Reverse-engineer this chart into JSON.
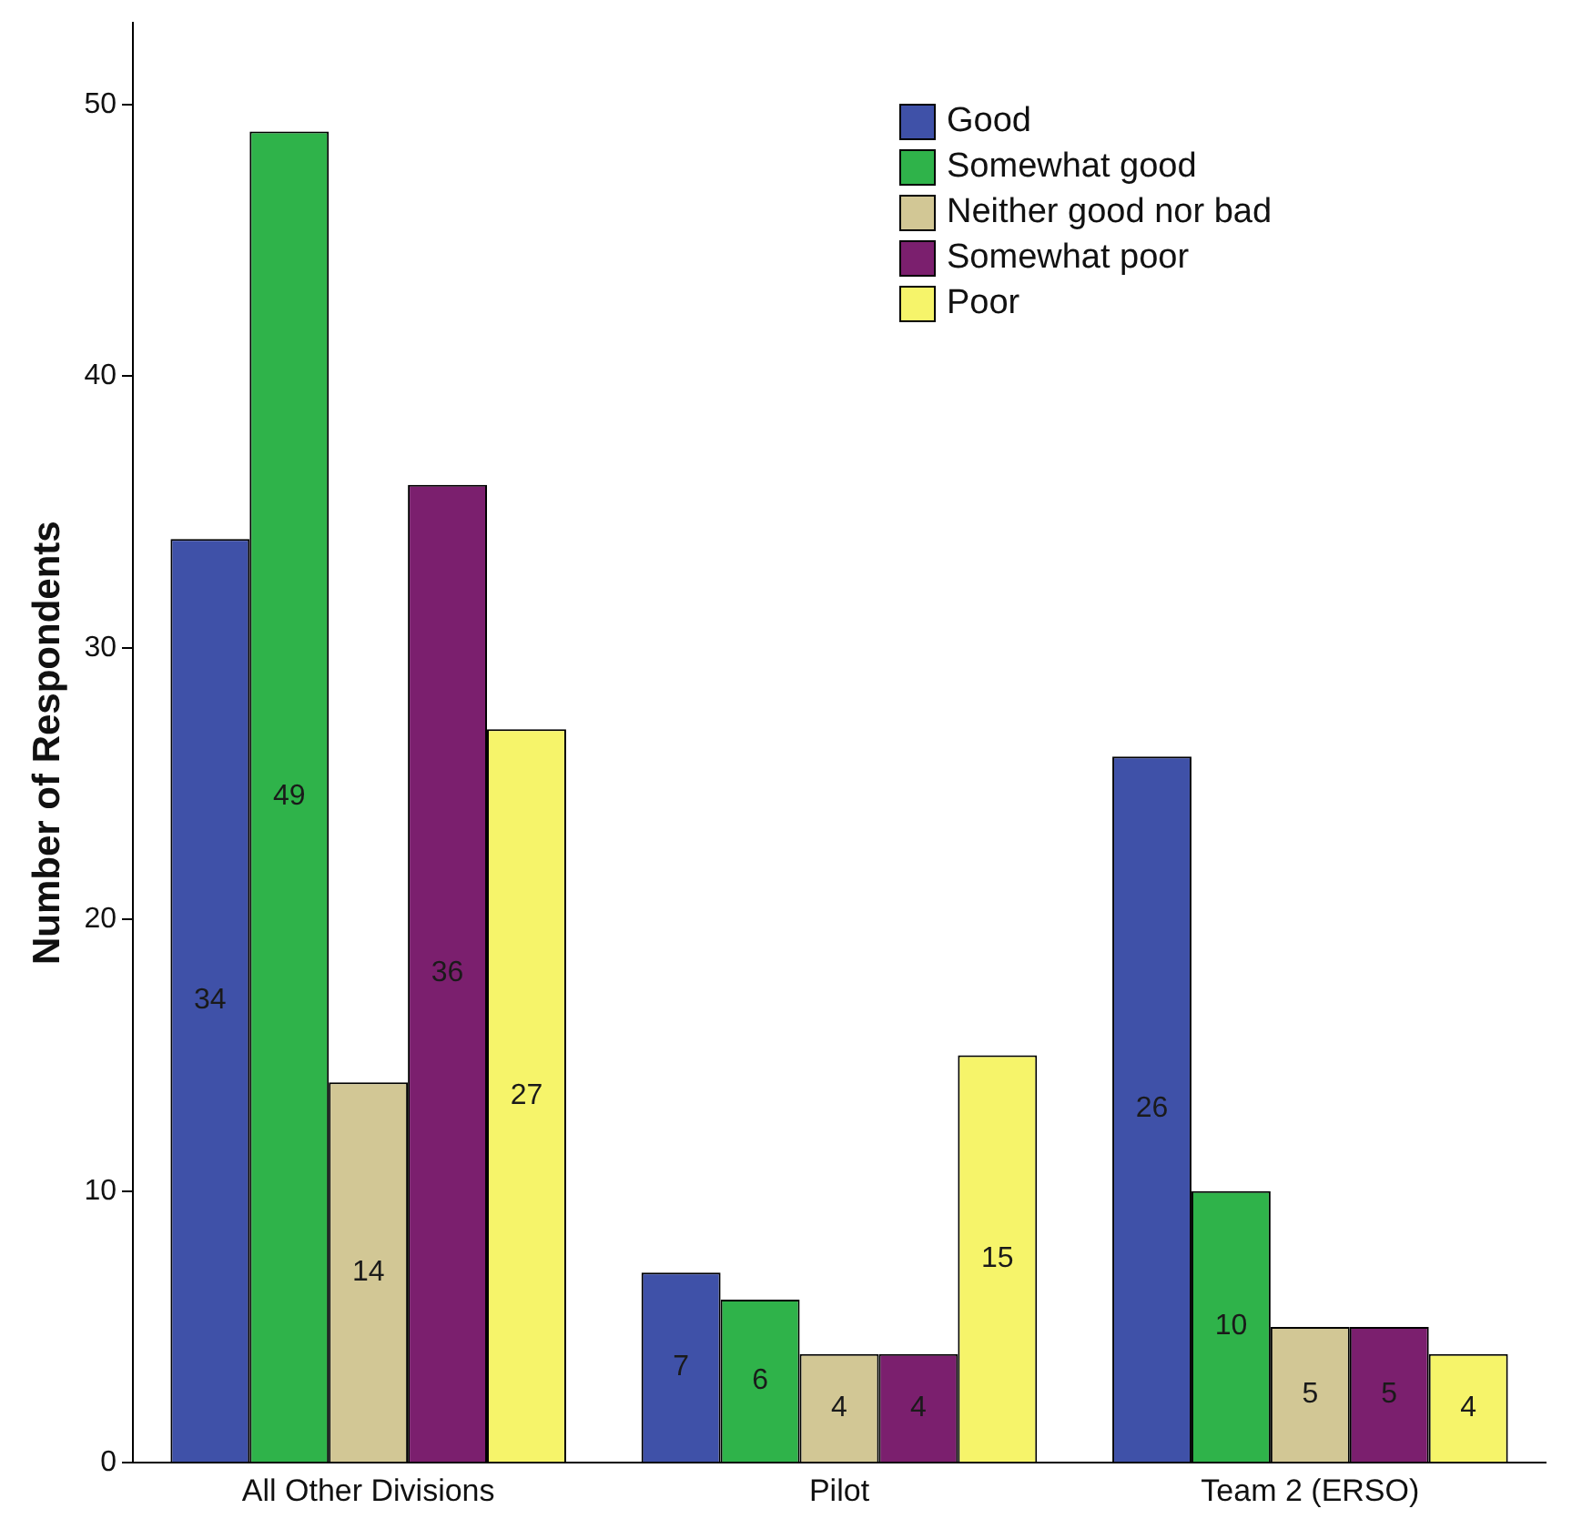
{
  "chart_data": {
    "type": "bar",
    "ylabel": "Number of Respondents",
    "categories": [
      "All Other Divisions",
      "Pilot",
      "Team 2 (ERSO)"
    ],
    "series": [
      {
        "name": "Good",
        "color": "#3f51a8",
        "values": [
          34,
          7,
          26
        ]
      },
      {
        "name": "Somewhat good",
        "color": "#2fb34a",
        "values": [
          49,
          6,
          10
        ]
      },
      {
        "name": "Neither good nor bad",
        "color": "#d2c795",
        "values": [
          14,
          4,
          5
        ]
      },
      {
        "name": "Somewhat poor",
        "color": "#7b1f6e",
        "values": [
          36,
          4,
          5
        ]
      },
      {
        "name": "Poor",
        "color": "#f6f46a",
        "values": [
          27,
          15,
          4
        ]
      }
    ],
    "ylim": [
      0,
      53
    ],
    "yticks": [
      0,
      10,
      20,
      30,
      40,
      50
    ],
    "grid": false,
    "legend": "top right",
    "data_labels": true
  }
}
